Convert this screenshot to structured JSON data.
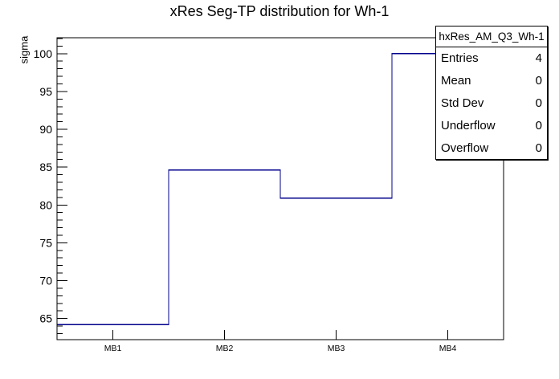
{
  "title": "xRes Seg-TP distribution for Wh-1",
  "y_axis_label": "sigma",
  "stats": {
    "header": "hxRes_AM_Q3_Wh-1",
    "rows": [
      {
        "label": "Entries",
        "value": "4"
      },
      {
        "label": "Mean",
        "value": "0"
      },
      {
        "label": "Std Dev",
        "value": "0"
      },
      {
        "label": "Underflow",
        "value": "0"
      },
      {
        "label": "Overflow",
        "value": "0"
      }
    ]
  },
  "colors": {
    "histogram_line": "#00008c",
    "frame": "#000000",
    "text": "#000000",
    "background": "#ffffff"
  },
  "chart_data": {
    "type": "line",
    "subtype": "step-histogram",
    "title": "xRes Seg-TP distribution for Wh-1",
    "xlabel": "",
    "ylabel": "sigma",
    "categories": [
      "MB1",
      "MB2",
      "MB3",
      "MB4"
    ],
    "values": [
      64.2,
      84.6,
      80.9,
      100.0
    ],
    "ylim": [
      62.2,
      102.1
    ],
    "y_major_ticks": [
      65,
      70,
      75,
      80,
      85,
      90,
      95,
      100
    ],
    "y_minor_tick_step": 1,
    "grid": false,
    "legend": false,
    "line_color": "#00008c"
  }
}
